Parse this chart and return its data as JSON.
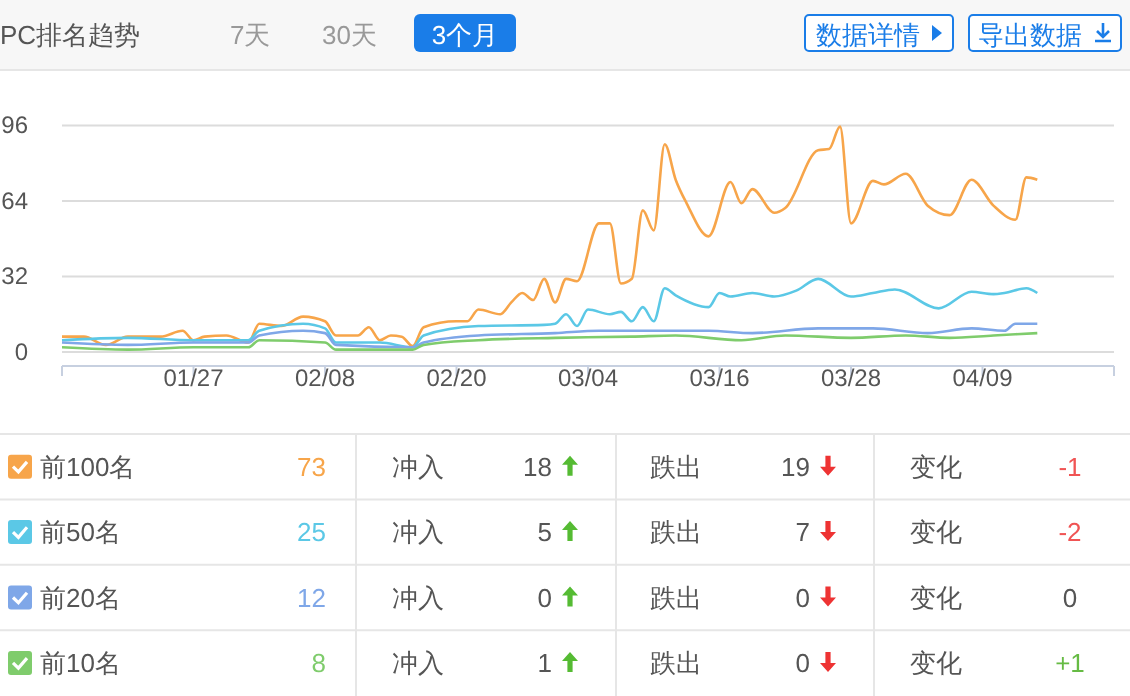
{
  "chart_data": {
    "type": "line",
    "title": "PC排名趋势",
    "xlim": [
      "--01-15",
      "--04-21"
    ],
    "xticks": [
      {
        "value": "--01-27",
        "label": "01/27"
      },
      {
        "value": "--02-08",
        "label": "02/08"
      },
      {
        "value": "--02-20",
        "label": "02/20"
      },
      {
        "value": "--03-04",
        "label": "03/04"
      },
      {
        "value": "--03-16",
        "label": "03/16"
      },
      {
        "value": "--03-28",
        "label": "03/28"
      },
      {
        "value": "--04-09",
        "label": "04/09"
      }
    ],
    "ylim": [
      0,
      96
    ],
    "yticks": [
      0,
      32,
      64,
      96
    ],
    "grid": "y",
    "legend": "bottom",
    "series": [
      {
        "name": "前100名",
        "color": "#f7a54a",
        "x": [
          "--01-15",
          "--01-17",
          "--01-19",
          "--01-21",
          "--01-24",
          "--01-26",
          "--01-27",
          "--01-28",
          "--01-30",
          "--02-01",
          "--02-02",
          "--02-04",
          "--02-06",
          "--02-08",
          "--02-09",
          "--02-11",
          "--02-12",
          "--02-13",
          "--02-14",
          "--02-15",
          "--02-16",
          "--02-17",
          "--02-20",
          "--02-21",
          "--02-22",
          "--02-24",
          "--02-25",
          "--02-26",
          "--02-27",
          "--02-28",
          "--03-01",
          "--03-02",
          "--03-03",
          "--03-05",
          "--03-06",
          "--03-07",
          "--03-08",
          "--03-09",
          "--03-10",
          "--03-11",
          "--03-12",
          "--03-13",
          "--03-15",
          "--03-17",
          "--03-18",
          "--03-19",
          "--03-21",
          "--03-22",
          "--03-25",
          "--03-26",
          "--03-27",
          "--03-28",
          "--03-30",
          "--03-31",
          "--04-02",
          "--04-04",
          "--04-06",
          "--04-08",
          "--04-10",
          "--04-12",
          "--04-13",
          "--04-14"
        ],
        "values": [
          6.5,
          6.5,
          3,
          6.5,
          6.5,
          9,
          5,
          6.5,
          7,
          4,
          12,
          11,
          15,
          13,
          7,
          7,
          10.5,
          5,
          7,
          6.5,
          2.5,
          10.5,
          13,
          13,
          18,
          16,
          21,
          25,
          22,
          31,
          21,
          31,
          30,
          54.5,
          54.5,
          29,
          31,
          60,
          51.5,
          88,
          73,
          63,
          49,
          72,
          63,
          69,
          59,
          61,
          85.5,
          86,
          95.5,
          54.5,
          72.5,
          71,
          75.5,
          62,
          58,
          73,
          62,
          56,
          74,
          73
        ]
      },
      {
        "name": "前50名",
        "color": "#5bc8e6",
        "x": [
          "--01-15",
          "--01-21",
          "--01-27",
          "--02-01",
          "--02-02",
          "--02-06",
          "--02-08",
          "--02-09",
          "--02-13",
          "--02-16",
          "--02-17",
          "--02-22",
          "--02-28",
          "--03-01",
          "--03-02",
          "--03-03",
          "--03-04",
          "--03-06",
          "--03-07",
          "--03-08",
          "--03-09",
          "--03-10",
          "--03-11",
          "--03-12",
          "--03-15",
          "--03-16",
          "--03-17",
          "--03-19",
          "--03-21",
          "--03-23",
          "--03-25",
          "--03-28",
          "--03-30",
          "--04-01",
          "--04-05",
          "--04-08",
          "--04-10",
          "--04-11",
          "--04-13",
          "--04-14"
        ],
        "values": [
          5,
          6,
          5,
          5,
          9,
          12,
          10,
          4,
          4,
          2,
          7,
          11,
          11.5,
          12,
          16,
          11,
          18,
          16,
          17,
          13,
          19,
          13,
          27,
          24,
          19,
          25,
          23.5,
          25,
          23.5,
          26,
          31,
          23.5,
          25,
          26.5,
          18.5,
          25.5,
          24.5,
          25,
          27,
          25
        ]
      },
      {
        "name": "前20名",
        "color": "#7fa7e8",
        "x": [
          "--01-15",
          "--01-21",
          "--01-27",
          "--02-01",
          "--02-02",
          "--02-06",
          "--02-08",
          "--02-09",
          "--02-16",
          "--02-17",
          "--02-22",
          "--03-01",
          "--03-05",
          "--03-10",
          "--03-15",
          "--03-19",
          "--03-25",
          "--03-30",
          "--04-04",
          "--04-08",
          "--04-11",
          "--04-12",
          "--04-14"
        ],
        "values": [
          4,
          3,
          4,
          4,
          7,
          9,
          8,
          3,
          2,
          4,
          7,
          8,
          9,
          9,
          9,
          8,
          10,
          10,
          8,
          10,
          9,
          12,
          12
        ]
      },
      {
        "name": "前10名",
        "color": "#7fcc6c",
        "x": [
          "--01-15",
          "--01-21",
          "--01-27",
          "--02-01",
          "--02-02",
          "--02-08",
          "--02-09",
          "--02-16",
          "--02-17",
          "--02-22",
          "--03-01",
          "--03-08",
          "--03-12",
          "--03-18",
          "--03-22",
          "--03-28",
          "--04-02",
          "--04-06",
          "--04-10",
          "--04-14"
        ],
        "values": [
          2,
          1,
          2,
          2,
          5,
          4,
          1,
          1,
          3,
          5,
          6,
          6.5,
          7,
          5,
          7,
          6,
          7,
          6,
          7,
          8
        ]
      }
    ],
    "annotations": [
      "7天",
      "30天",
      "3个月",
      "数据详情",
      "导出数据",
      "73",
      "冲入",
      "18",
      "跌出",
      "19",
      "变化",
      "-1",
      "25",
      "冲入",
      "5",
      "跌出",
      "7",
      "变化",
      "-2",
      "12",
      "冲入",
      "0",
      "跌出",
      "0",
      "变化",
      "0",
      "8",
      "冲入",
      "1",
      "跌出",
      "0",
      "变化",
      "+1"
    ]
  }
}
